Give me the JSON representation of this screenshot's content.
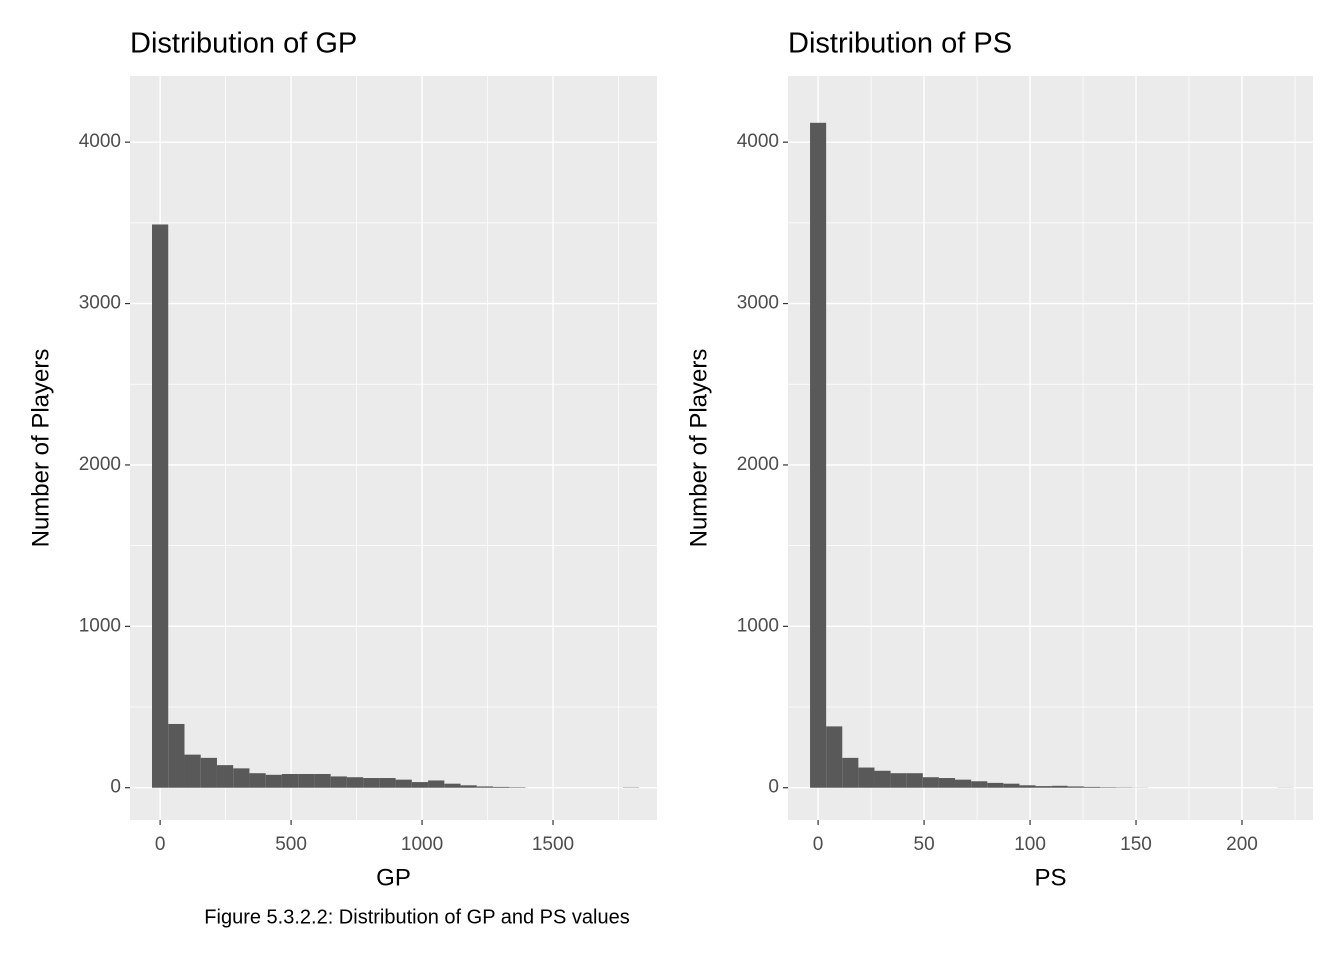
{
  "chart_data": [
    {
      "type": "histogram",
      "title": "Distribution of GP",
      "x_label": "GP",
      "y_label": "Number of Players",
      "color": "#595959",
      "bins": [
        -31,
        31,
        93,
        155,
        217,
        279,
        341,
        403,
        465,
        527,
        589,
        651,
        713,
        775,
        837,
        899,
        961,
        1023,
        1085,
        1147,
        1209,
        1271,
        1333,
        1395,
        1457,
        1519,
        1581,
        1643,
        1705,
        1767,
        1829
      ],
      "values": [
        3490,
        395,
        205,
        185,
        140,
        120,
        90,
        80,
        85,
        85,
        85,
        70,
        65,
        60,
        60,
        50,
        35,
        45,
        25,
        15,
        8,
        5,
        3,
        0,
        0,
        0,
        0,
        0,
        0,
        2
      ],
      "xlim": [
        -115,
        1897
      ],
      "xticks": [
        0,
        500,
        1000,
        1500
      ],
      "ylim": [
        -200,
        4410
      ],
      "yticks": [
        0,
        1000,
        2000,
        3000,
        4000
      ],
      "grid": true
    },
    {
      "type": "histogram",
      "title": "Distribution of PS",
      "x_label": "PS",
      "y_label": "Number of Players",
      "color": "#595959",
      "bins": [
        -3.8,
        3.8,
        11.4,
        19,
        26.6,
        34.2,
        41.8,
        49.4,
        57,
        64.6,
        72.2,
        79.8,
        87.4,
        95,
        102.6,
        110.2,
        117.8,
        125.4,
        133,
        140.6,
        148.2,
        155.8,
        163.4,
        171,
        178.6,
        186.2,
        193.8,
        201.4,
        209,
        216.6,
        224.2
      ],
      "values": [
        4120,
        380,
        185,
        125,
        105,
        90,
        90,
        65,
        60,
        50,
        40,
        30,
        25,
        15,
        10,
        12,
        8,
        5,
        3,
        2,
        1,
        0,
        0,
        0,
        0,
        0,
        0,
        0,
        0,
        1
      ],
      "xlim": [
        -14.2,
        233.5
      ],
      "xticks": [
        0,
        50,
        100,
        150,
        200
      ],
      "ylim": [
        -200,
        4410
      ],
      "yticks": [
        0,
        1000,
        2000,
        3000,
        4000
      ],
      "grid": true
    }
  ],
  "caption": "Figure 5.3.2.2: Distribution of GP and PS values"
}
